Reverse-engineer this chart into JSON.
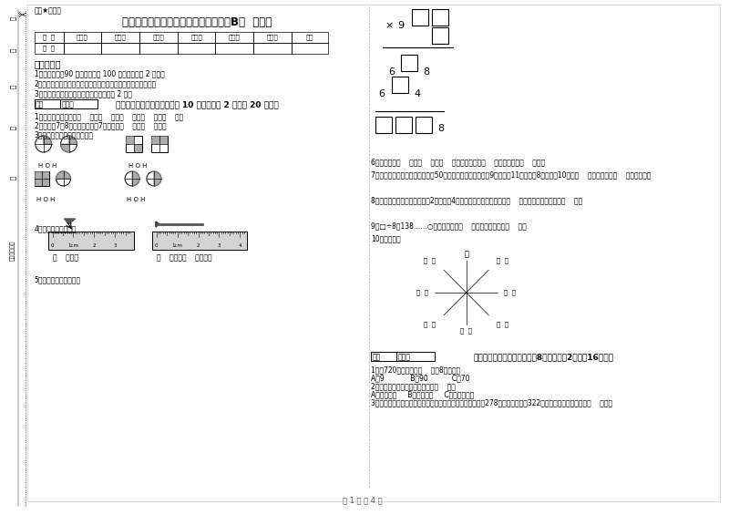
{
  "title": "上海教育版三年级数学下学期月考试卷B卷  附解析",
  "subtitle": "微课★自用图",
  "page_footer": "第 1 页 共 4 页",
  "table_headers": [
    "题  号",
    "填空题",
    "选择题",
    "判断题",
    "计算题",
    "综合题",
    "应用题",
    "总分"
  ],
  "table_row": [
    "得  分",
    "",
    "",
    "",
    "",
    "",
    "",
    ""
  ],
  "instructions_title": "考试须知：",
  "instructions": [
    "1．考试时间：90 分钟，满分为 100 分（含卷面分 2 分）。",
    "2．请首先按要求在试卷的指定位置填写您的姓名、班级、学号。",
    "3．不要在试卷上乱写乱画，卷面不整洁扣 2 分。"
  ],
  "section1_title": "一、用心思考，正确填空（共 10 小题，每题 2 分，共 20 分）。",
  "q1": "1．常用的长度单位有（    ）、（    ）、（    ）、（    ）、（    ）。",
  "q2": "2．时针在7和8之间，分针指向7，这时是（    ）时（    ）分。",
  "q3": "3．看图写分数，并比较大小。",
  "q4": "4．量出钉子的长度。",
  "q4a": "（    ）毫米",
  "q4b": "（    ）厘米（    ）毫米。",
  "q5": "5．在里填上适当的数。",
  "q6": "6．你出生于（    ）年（    ）月（    ）日，那一年是（    ）年，全年有（    ）天。",
  "q7": "7．体育老师对第一小组同学进行50米跑测试，成绩如下小红9秒，小丽11秒，小明8秒，小军10秒。（    ）跑得最快，（    ）跑得最慢。",
  "q8": "8．劳动课上做纸花，红红做了2朵纸花，4朵蓝花，红花占纸花总数的（    ），蓝花占纸花总数的（    ）。",
  "q9": "9．□÷8＝138……○，余数最大填（    ），这时被除数是（    ）。",
  "q10": "10．填一填。",
  "section2_title": "二、反复比较，慎重选择（共8小题，每题2分，共16分）。",
  "s2q1": "1．从720中连续减去（    ）个8，减完。",
  "s2q1_opts": "A、9            B、90           C、70",
  "s2q2": "2．下面现象中属于平移现象的是（    ）。",
  "s2q2_opts": "A、开关抽屉     B、打开瓶盖     C、转动的风车",
  "s2q3": "3．广州新电视塔是广州市目前最高的建筑，它比中信大厦高278米，中信大厦高322米，那么广州新电视塔高（    ）米。",
  "sidebar_labels": [
    "号",
    "名",
    "级",
    "校",
    "区",
    "装（粘贴）订"
  ],
  "score_label": "得分  评卷人"
}
